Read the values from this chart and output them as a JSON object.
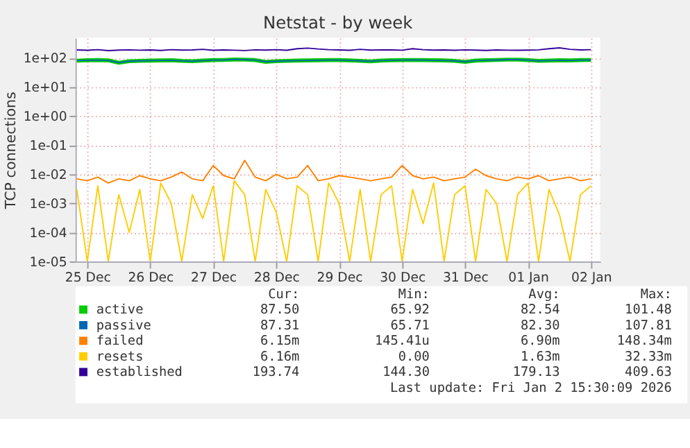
{
  "chart_data": {
    "type": "line",
    "title": "Netstat - by week",
    "ylabel": "TCP connections",
    "log": "y",
    "grid": true,
    "legend": "bottom",
    "xlim": [
      "2025-12-25T07:30",
      "2026-01-02T15:30"
    ],
    "xticks": [
      {
        "value": "2025-12-25T12:00",
        "label": "25 Dec"
      },
      {
        "value": "2025-12-26T12:00",
        "label": "26 Dec"
      },
      {
        "value": "2025-12-27T12:00",
        "label": "27 Dec"
      },
      {
        "value": "2025-12-28T12:00",
        "label": "28 Dec"
      },
      {
        "value": "2025-12-29T12:00",
        "label": "29 Dec"
      },
      {
        "value": "2025-12-30T12:00",
        "label": "30 Dec"
      },
      {
        "value": "2025-12-31T12:00",
        "label": "31 Dec"
      },
      {
        "value": "2026-01-01T12:00",
        "label": "01 Jan"
      },
      {
        "value": "2026-01-02T12:00",
        "label": "02 Jan"
      }
    ],
    "ylim": [
      1e-05,
      500
    ],
    "yticks": [
      {
        "value": 1e-05,
        "label": "1e-05"
      },
      {
        "value": 0.0001,
        "label": "1e-04"
      },
      {
        "value": 0.001,
        "label": "1e-03"
      },
      {
        "value": 0.01,
        "label": "1e-02"
      },
      {
        "value": 0.1,
        "label": "1e-01"
      },
      {
        "value": 1,
        "label": "1e+00"
      },
      {
        "value": 10,
        "label": "1e+01"
      },
      {
        "value": 100,
        "label": "1e+02"
      }
    ],
    "x": [
      "2025-12-25T08:00",
      "2025-12-25T12:00",
      "2025-12-25T16:00",
      "2025-12-25T20:00",
      "2025-12-26T00:00",
      "2025-12-26T04:00",
      "2025-12-26T08:00",
      "2025-12-26T12:00",
      "2025-12-26T16:00",
      "2025-12-26T20:00",
      "2025-12-27T00:00",
      "2025-12-27T04:00",
      "2025-12-27T08:00",
      "2025-12-27T12:00",
      "2025-12-27T16:00",
      "2025-12-27T20:00",
      "2025-12-28T00:00",
      "2025-12-28T04:00",
      "2025-12-28T08:00",
      "2025-12-28T12:00",
      "2025-12-28T16:00",
      "2025-12-28T20:00",
      "2025-12-29T00:00",
      "2025-12-29T04:00",
      "2025-12-29T08:00",
      "2025-12-29T12:00",
      "2025-12-29T16:00",
      "2025-12-29T20:00",
      "2025-12-30T00:00",
      "2025-12-30T04:00",
      "2025-12-30T08:00",
      "2025-12-30T12:00",
      "2025-12-30T16:00",
      "2025-12-30T20:00",
      "2025-12-31T00:00",
      "2025-12-31T04:00",
      "2025-12-31T08:00",
      "2025-12-31T12:00",
      "2025-12-31T16:00",
      "2025-12-31T20:00",
      "2026-01-01T00:00",
      "2026-01-01T04:00",
      "2026-01-01T08:00",
      "2026-01-01T12:00",
      "2026-01-01T16:00",
      "2026-01-01T20:00",
      "2026-01-02T00:00",
      "2026-01-02T04:00",
      "2026-01-02T08:00",
      "2026-01-02T12:00"
    ],
    "series": [
      {
        "name": "active",
        "color": "#00cc00",
        "values": [
          81,
          84,
          85,
          83,
          69,
          78,
          80,
          82,
          83,
          84,
          80,
          78,
          82,
          85,
          86,
          89,
          88,
          85,
          74,
          78,
          80,
          82,
          83,
          84,
          85,
          85,
          83,
          80,
          77,
          82,
          84,
          85,
          86,
          85,
          84,
          83,
          80,
          74,
          82,
          84,
          86,
          88,
          88,
          85,
          80,
          82,
          84,
          83,
          85,
          86
        ]
      },
      {
        "name": "passive",
        "color": "#0066b3",
        "values": [
          82,
          84,
          85,
          83,
          70,
          78,
          80,
          82,
          83,
          84,
          80,
          78,
          82,
          85,
          86,
          90,
          88,
          85,
          75,
          78,
          80,
          82,
          83,
          84,
          85,
          85,
          83,
          80,
          78,
          82,
          84,
          85,
          86,
          85,
          84,
          83,
          80,
          75,
          82,
          84,
          86,
          88,
          88,
          85,
          80,
          82,
          84,
          83,
          85,
          86
        ]
      },
      {
        "name": "failed",
        "color": "#ff8000",
        "values": [
          0.007,
          0.006,
          0.008,
          0.005,
          0.007,
          0.006,
          0.009,
          0.007,
          0.006,
          0.008,
          0.012,
          0.007,
          0.006,
          0.02,
          0.009,
          0.007,
          0.03,
          0.008,
          0.006,
          0.01,
          0.007,
          0.008,
          0.02,
          0.006,
          0.007,
          0.009,
          0.008,
          0.007,
          0.006,
          0.007,
          0.008,
          0.02,
          0.009,
          0.007,
          0.008,
          0.006,
          0.007,
          0.008,
          0.015,
          0.009,
          0.007,
          0.006,
          0.008,
          0.007,
          0.009,
          0.006,
          0.007,
          0.008,
          0.006,
          0.007
        ]
      },
      {
        "name": "resets",
        "color": "#ffcc00",
        "values": [
          0.003,
          1e-05,
          0.004,
          1e-05,
          0.002,
          0.0001,
          0.003,
          1e-05,
          0.005,
          0.001,
          1e-05,
          0.002,
          0.0003,
          0.004,
          1e-05,
          0.006,
          0.002,
          1e-05,
          0.003,
          0.0005,
          1e-05,
          0.004,
          0.002,
          1e-05,
          0.005,
          0.001,
          1e-05,
          0.003,
          1e-05,
          0.002,
          0.004,
          1e-05,
          0.003,
          0.0002,
          0.005,
          1e-05,
          0.002,
          0.004,
          1e-05,
          0.003,
          0.001,
          1e-05,
          0.002,
          0.005,
          1e-05,
          0.003,
          0.0004,
          1e-05,
          0.002,
          0.004
        ]
      },
      {
        "name": "established",
        "color": "#330099",
        "values": [
          190,
          185,
          195,
          180,
          188,
          192,
          186,
          190,
          183,
          195,
          188,
          190,
          200,
          185,
          190,
          187,
          182,
          192,
          188,
          194,
          185,
          210,
          220,
          205,
          195,
          190,
          185,
          200,
          188,
          192,
          190,
          186,
          210,
          195,
          188,
          190,
          185,
          192,
          188,
          183,
          190,
          186,
          185,
          188,
          192,
          210,
          225,
          200,
          190,
          195
        ]
      }
    ],
    "annotations": [
      "Cur:",
      "Min:",
      "Avg:",
      "Max:",
      "87.50",
      "65.92",
      "82.54",
      "101.48",
      "87.31",
      "65.71",
      "82.30",
      "107.81",
      "6.15m",
      "145.41u",
      "6.90m",
      "148.34m",
      "6.16m",
      "0.00",
      "1.63m",
      "32.33m",
      "193.74",
      "144.30",
      "179.13",
      "409.63",
      "Last update: Fri Jan  2 15:30:09 2026"
    ]
  }
}
